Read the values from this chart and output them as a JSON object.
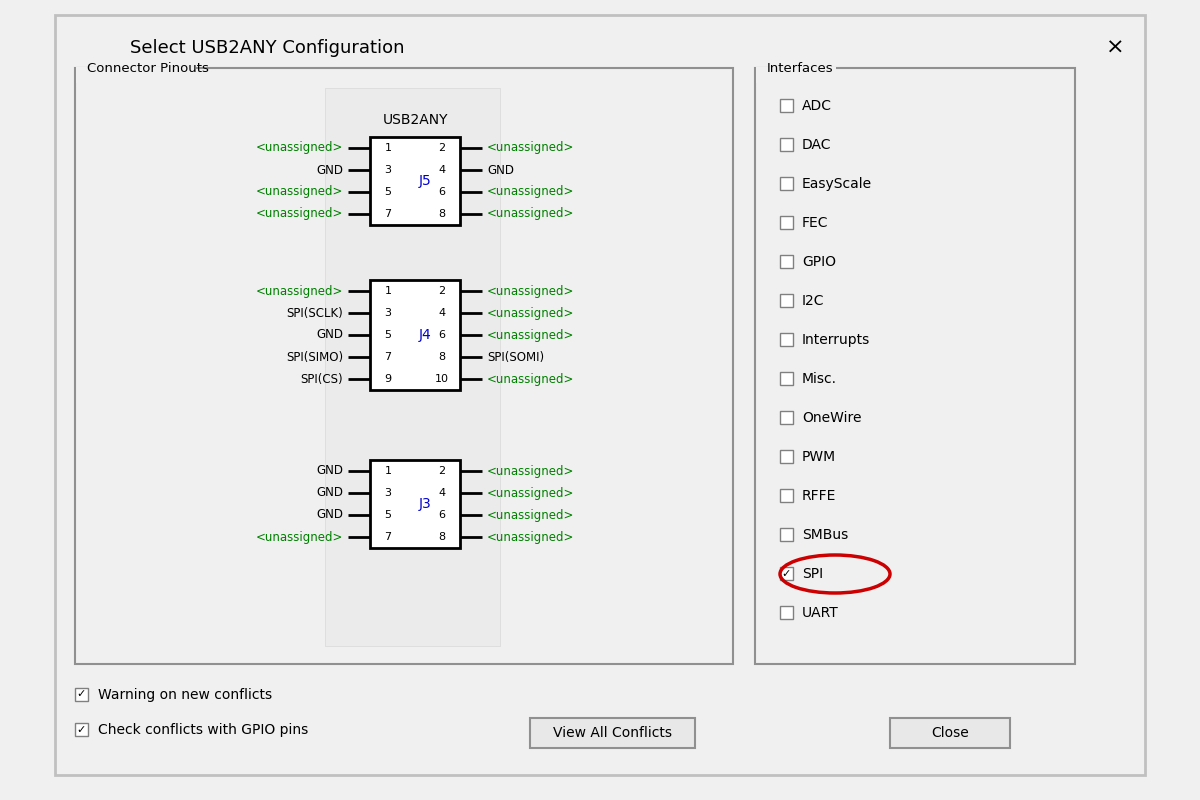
{
  "title": "Select USB2ANY Configuration",
  "bg_color": "#f0f0f0",
  "connector_group_label": "Connector Pinouts",
  "interfaces_group_label": "Interfaces",
  "usb2any_label": "USB2ANY",
  "j5_label": "J5",
  "j4_label": "J4",
  "j3_label": "J3",
  "j5_rows": [
    [
      "<unassigned>",
      "1",
      "2",
      "<unassigned>"
    ],
    [
      "GND",
      "3",
      "4",
      "GND"
    ],
    [
      "<unassigned>",
      "5",
      "6",
      "<unassigned>"
    ],
    [
      "<unassigned>",
      "7",
      "8",
      "<unassigned>"
    ]
  ],
  "j4_rows": [
    [
      "<unassigned>",
      "1",
      "2",
      "<unassigned>"
    ],
    [
      "SPI(SCLK)",
      "3",
      "4",
      "<unassigned>"
    ],
    [
      "GND",
      "5",
      "6",
      "<unassigned>"
    ],
    [
      "SPI(SIMO)",
      "7",
      "8",
      "SPI(SOMI)"
    ],
    [
      "SPI(CS)",
      "9",
      "10",
      "<unassigned>"
    ]
  ],
  "j3_rows": [
    [
      "GND",
      "1",
      "2",
      "<unassigned>"
    ],
    [
      "GND",
      "3",
      "4",
      "<unassigned>"
    ],
    [
      "GND",
      "5",
      "6",
      "<unassigned>"
    ],
    [
      "<unassigned>",
      "7",
      "8",
      "<unassigned>"
    ]
  ],
  "interfaces": [
    "ADC",
    "DAC",
    "EasyScale",
    "FEC",
    "GPIO",
    "I2C",
    "Interrupts",
    "Misc.",
    "OneWire",
    "PWM",
    "RFFE",
    "SMBus",
    "SPI",
    "UART"
  ],
  "checked_interfaces": [
    "SPI"
  ],
  "bottom_checks": [
    {
      "label": "Warning on new conflicts",
      "checked": true
    },
    {
      "label": "Check conflicts with GPIO pins",
      "checked": true
    }
  ],
  "buttons": [
    "View All Conflicts",
    "Close"
  ],
  "green_color": "#008000",
  "blue_color": "#0000cc",
  "black_color": "#000000",
  "red_color": "#cc0000"
}
